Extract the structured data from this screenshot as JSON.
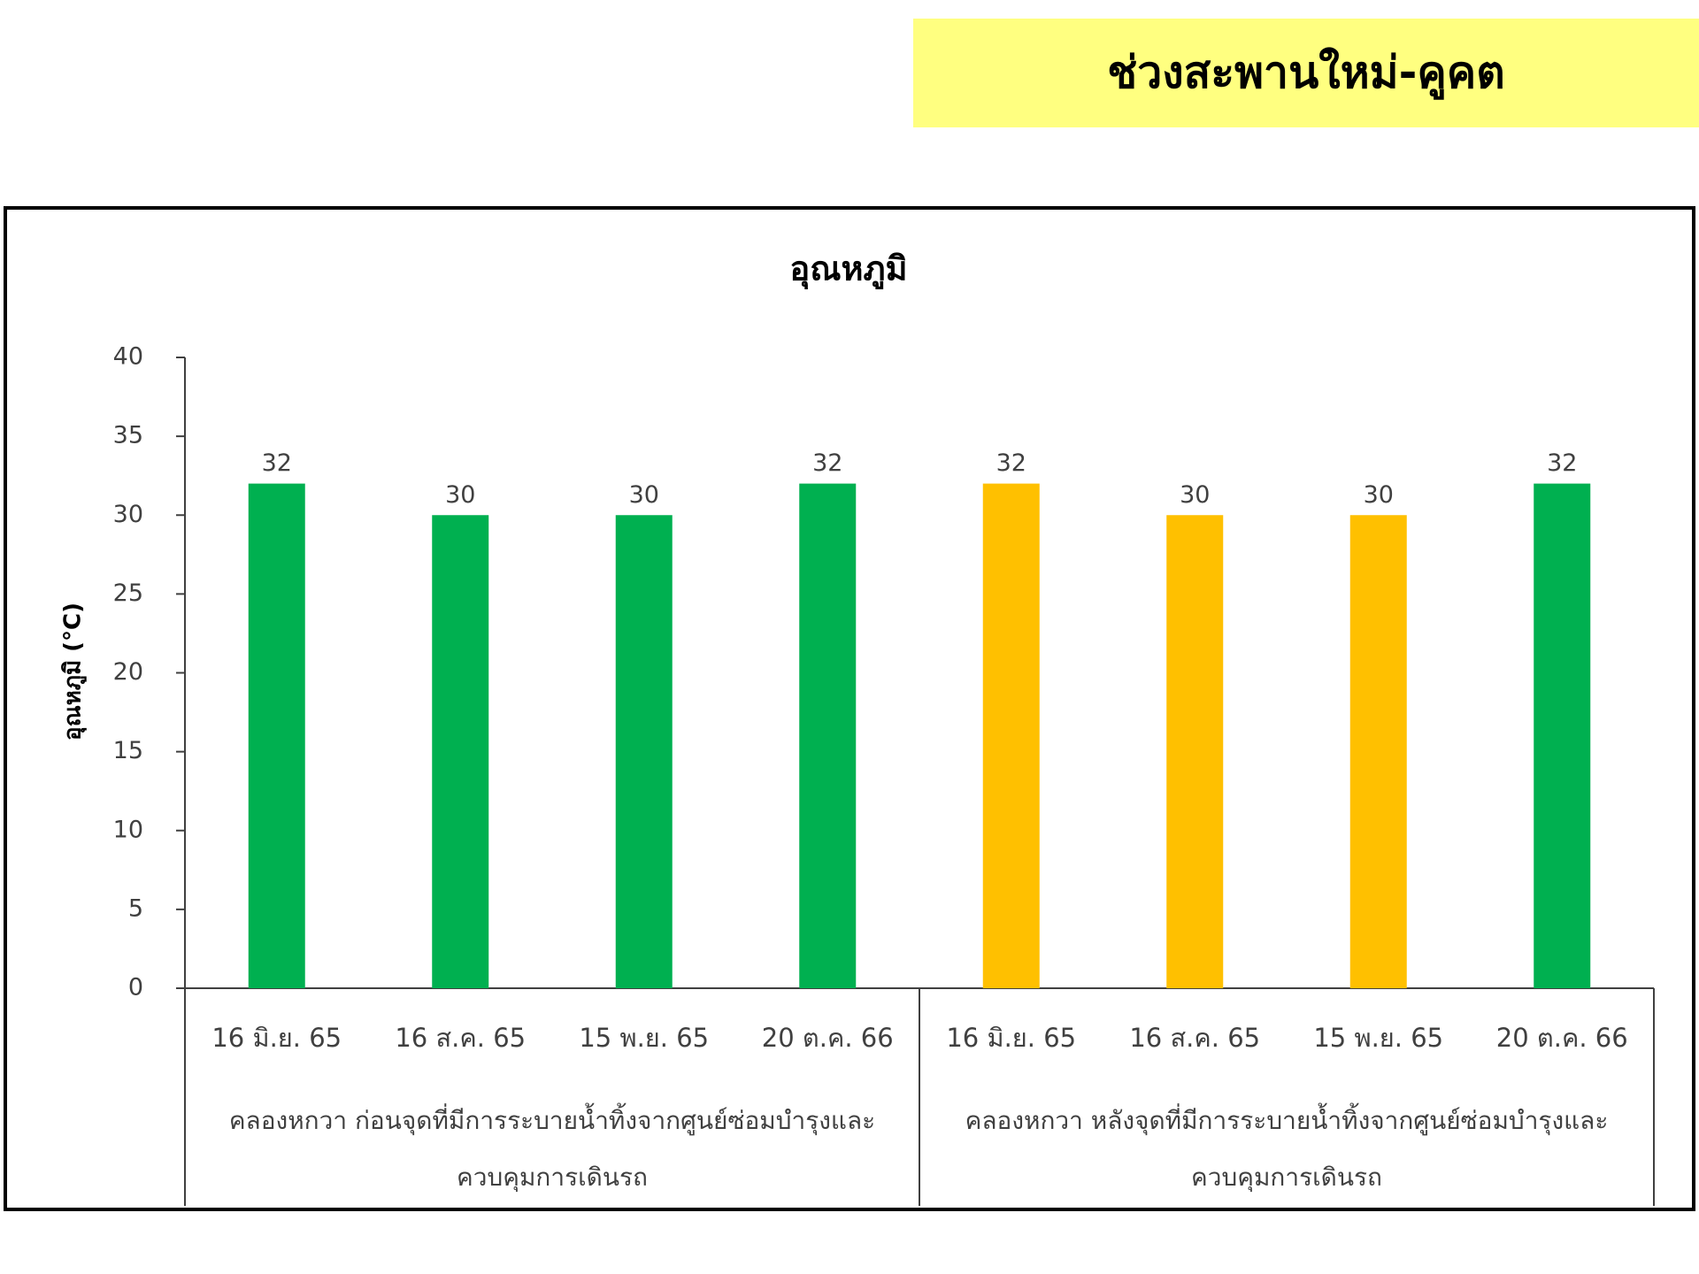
{
  "header": {
    "title": "ช่วงสะพานใหม่-คูคต"
  },
  "chart_data": {
    "type": "bar",
    "title": "อุณหภูมิ",
    "y_label": "อุณหภูมิ (°C)",
    "categories": [
      "16 มิ.ย. 65",
      "16 ส.ค. 65",
      "15 พ.ย. 65",
      "20 ต.ค. 66",
      "16 มิ.ย. 65",
      "16 ส.ค. 65",
      "15 พ.ย. 65",
      "20 ต.ค. 66"
    ],
    "groups": [
      "คลองหกวา ก่อนจุดที่มีการระบายน้ำทิ้งจากศูนย์ซ่อมบำรุงและควบคุมการเดินรถ",
      "คลองหกวา หลังจุดที่มีการระบายน้ำทิ้งจากศูนย์ซ่อมบำรุงและควบคุมการเดินรถ"
    ],
    "values": [
      32,
      30,
      30,
      32,
      32,
      30,
      30,
      32
    ],
    "colors": [
      "#00b050",
      "#00b050",
      "#00b050",
      "#00b050",
      "#ffc000",
      "#ffc000",
      "#ffc000",
      "#00b050"
    ],
    "ylim": [
      0,
      40
    ],
    "yticks": [
      0,
      5,
      10,
      15,
      20,
      25,
      30,
      35,
      40
    ]
  }
}
